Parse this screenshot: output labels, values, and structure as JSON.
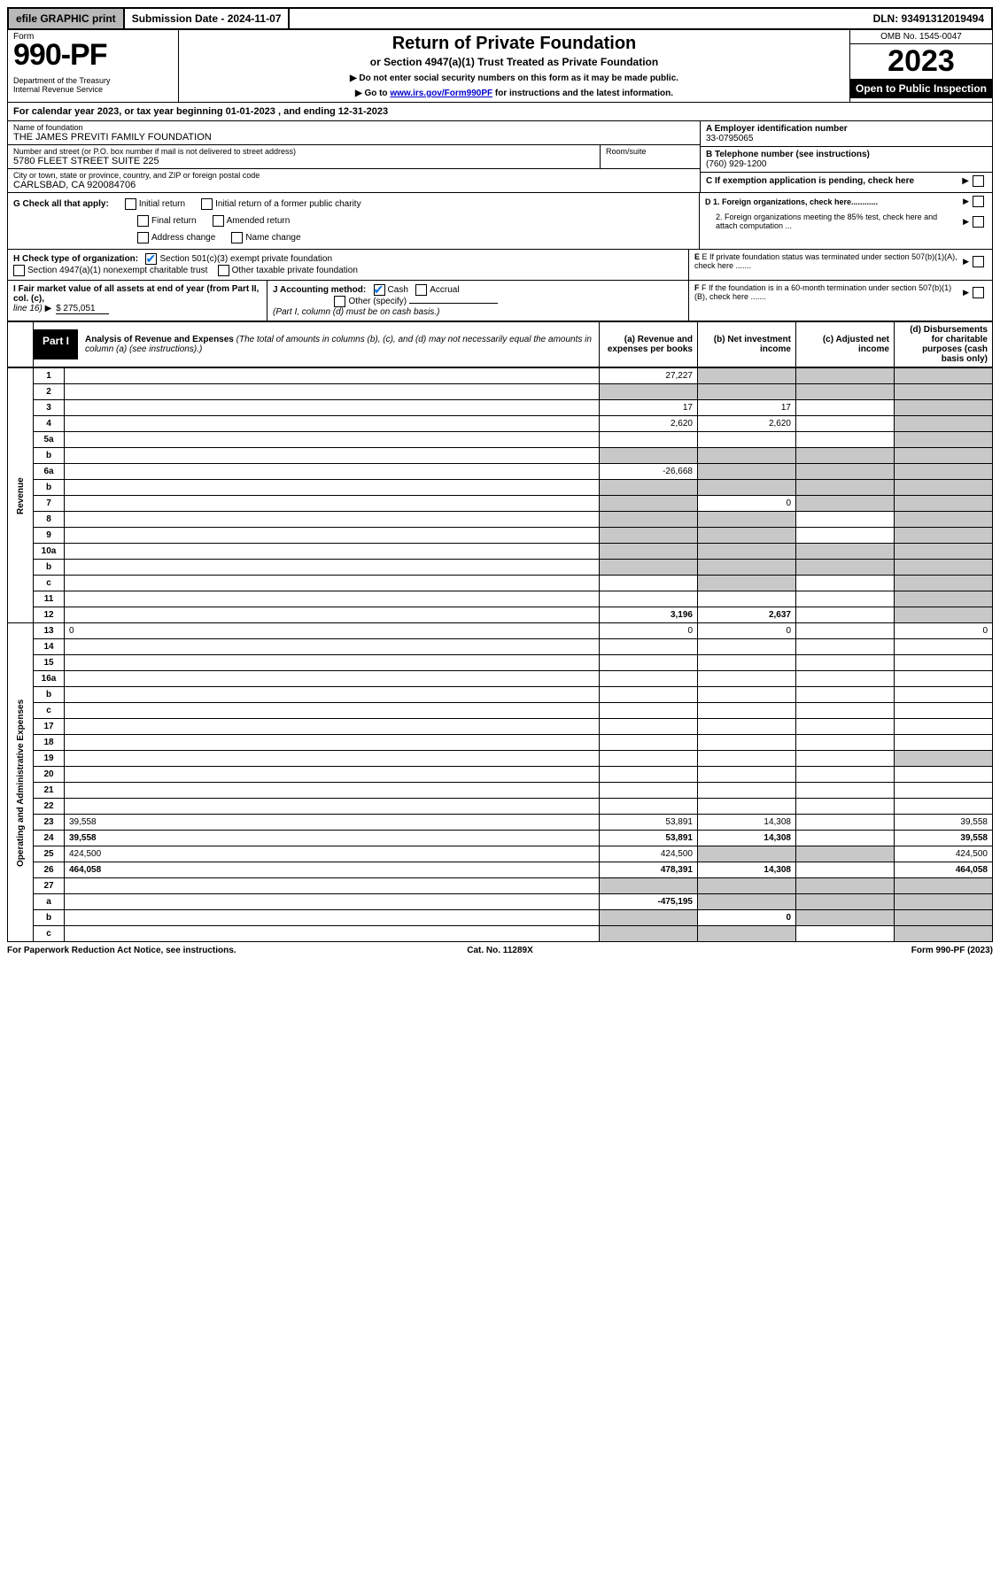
{
  "top": {
    "efile": "efile GRAPHIC print",
    "subdate_label": "Submission Date - 2024-11-07",
    "dln": "DLN: 93491312019494"
  },
  "header": {
    "form_label": "Form",
    "form_number": "990-PF",
    "dept": "Department of the Treasury\nInternal Revenue Service",
    "title": "Return of Private Foundation",
    "subtitle": "or Section 4947(a)(1) Trust Treated as Private Foundation",
    "note1": "▶ Do not enter social security numbers on this form as it may be made public.",
    "note2_prefix": "▶ Go to ",
    "note2_link": "www.irs.gov/Form990PF",
    "note2_suffix": " for instructions and the latest information.",
    "omb": "OMB No. 1545-0047",
    "year": "2023",
    "open": "Open to Public Inspection"
  },
  "calyear": "For calendar year 2023, or tax year beginning 01-01-2023             , and ending 12-31-2023",
  "info": {
    "name_label": "Name of foundation",
    "name": "THE JAMES PREVITI FAMILY FOUNDATION",
    "addr_label": "Number and street (or P.O. box number if mail is not delivered to street address)",
    "addr": "5780 FLEET STREET SUITE 225",
    "room_label": "Room/suite",
    "city_label": "City or town, state or province, country, and ZIP or foreign postal code",
    "city": "CARLSBAD, CA  920084706",
    "A_label": "A Employer identification number",
    "A_val": "33-0795065",
    "B_label": "B Telephone number (see instructions)",
    "B_val": "(760) 929-1200",
    "C_label": "C If exemption application is pending, check here",
    "D1_label": "D 1. Foreign organizations, check here............",
    "D2_label": "2. Foreign organizations meeting the 85% test, check here and attach computation ...",
    "E_label": "E  If private foundation status was terminated under section 507(b)(1)(A), check here .......",
    "F_label": "F  If the foundation is in a 60-month termination under section 507(b)(1)(B), check here ......."
  },
  "G": {
    "label": "G Check all that apply:",
    "opts": [
      "Initial return",
      "Initial return of a former public charity",
      "Final return",
      "Amended return",
      "Address change",
      "Name change"
    ]
  },
  "H": {
    "label": "H Check type of organization:",
    "opt1": "Section 501(c)(3) exempt private foundation",
    "opt2": "Section 4947(a)(1) nonexempt charitable trust",
    "opt3": "Other taxable private foundation"
  },
  "I": {
    "label": "I Fair market value of all assets at end of year (from Part II, col. (c),",
    "line": "line 16)",
    "val": "$  275,051"
  },
  "J": {
    "label": "J Accounting method:",
    "cash": "Cash",
    "accrual": "Accrual",
    "other": "Other (specify)",
    "note": "(Part I, column (d) must be on cash basis.)"
  },
  "part1": {
    "label": "Part I",
    "title": "Analysis of Revenue and Expenses",
    "title_note": "(The total of amounts in columns (b), (c), and (d) may not necessarily equal the amounts in column (a) (see instructions).)",
    "col_a": "(a)  Revenue and expenses per books",
    "col_b": "(b)  Net investment income",
    "col_c": "(c)  Adjusted net income",
    "col_d": "(d)  Disbursements for charitable purposes (cash basis only)"
  },
  "sections": {
    "revenue": "Revenue",
    "opadmin": "Operating and Administrative Expenses"
  },
  "rows": [
    {
      "n": "1",
      "d": "",
      "a": "27,227",
      "b": "",
      "c": "",
      "shade": [
        "b",
        "c",
        "d"
      ]
    },
    {
      "n": "2",
      "d": "",
      "a": "",
      "b": "",
      "c": "",
      "shade": [
        "a",
        "b",
        "c",
        "d"
      ]
    },
    {
      "n": "3",
      "d": "",
      "a": "17",
      "b": "17",
      "c": "",
      "shade": [
        "d"
      ]
    },
    {
      "n": "4",
      "d": "",
      "a": "2,620",
      "b": "2,620",
      "c": "",
      "shade": [
        "d"
      ]
    },
    {
      "n": "5a",
      "d": "",
      "a": "",
      "b": "",
      "c": "",
      "shade": [
        "d"
      ]
    },
    {
      "n": "b",
      "d": "",
      "a": "",
      "b": "",
      "c": "",
      "shade": [
        "a",
        "b",
        "c",
        "d"
      ]
    },
    {
      "n": "6a",
      "d": "",
      "a": "-26,668",
      "b": "",
      "c": "",
      "shade": [
        "b",
        "c",
        "d"
      ]
    },
    {
      "n": "b",
      "d": "",
      "a": "",
      "b": "",
      "c": "",
      "shade": [
        "a",
        "b",
        "c",
        "d"
      ]
    },
    {
      "n": "7",
      "d": "",
      "a": "",
      "b": "0",
      "c": "",
      "shade": [
        "a",
        "c",
        "d"
      ]
    },
    {
      "n": "8",
      "d": "",
      "a": "",
      "b": "",
      "c": "",
      "shade": [
        "a",
        "b",
        "d"
      ]
    },
    {
      "n": "9",
      "d": "",
      "a": "",
      "b": "",
      "c": "",
      "shade": [
        "a",
        "b",
        "d"
      ]
    },
    {
      "n": "10a",
      "d": "",
      "a": "",
      "b": "",
      "c": "",
      "shade": [
        "a",
        "b",
        "c",
        "d"
      ]
    },
    {
      "n": "b",
      "d": "",
      "a": "",
      "b": "",
      "c": "",
      "shade": [
        "a",
        "b",
        "c",
        "d"
      ]
    },
    {
      "n": "c",
      "d": "",
      "a": "",
      "b": "",
      "c": "",
      "shade": [
        "b",
        "d"
      ]
    },
    {
      "n": "11",
      "d": "",
      "a": "",
      "b": "",
      "c": "",
      "shade": [
        "d"
      ]
    },
    {
      "n": "12",
      "d": "",
      "a": "3,196",
      "b": "2,637",
      "c": "",
      "bold": true,
      "shade": [
        "d"
      ]
    },
    {
      "n": "13",
      "d": "0",
      "a": "0",
      "b": "0",
      "c": ""
    },
    {
      "n": "14",
      "d": "",
      "a": "",
      "b": "",
      "c": ""
    },
    {
      "n": "15",
      "d": "",
      "a": "",
      "b": "",
      "c": ""
    },
    {
      "n": "16a",
      "d": "",
      "a": "",
      "b": "",
      "c": ""
    },
    {
      "n": "b",
      "d": "",
      "a": "",
      "b": "",
      "c": ""
    },
    {
      "n": "c",
      "d": "",
      "a": "",
      "b": "",
      "c": ""
    },
    {
      "n": "17",
      "d": "",
      "a": "",
      "b": "",
      "c": ""
    },
    {
      "n": "18",
      "d": "",
      "a": "",
      "b": "",
      "c": ""
    },
    {
      "n": "19",
      "d": "",
      "a": "",
      "b": "",
      "c": "",
      "shade": [
        "d"
      ]
    },
    {
      "n": "20",
      "d": "",
      "a": "",
      "b": "",
      "c": ""
    },
    {
      "n": "21",
      "d": "",
      "a": "",
      "b": "",
      "c": ""
    },
    {
      "n": "22",
      "d": "",
      "a": "",
      "b": "",
      "c": ""
    },
    {
      "n": "23",
      "d": "39,558",
      "a": "53,891",
      "b": "14,308",
      "c": ""
    },
    {
      "n": "24",
      "d": "39,558",
      "a": "53,891",
      "b": "14,308",
      "c": "",
      "bold": true
    },
    {
      "n": "25",
      "d": "424,500",
      "a": "424,500",
      "b": "",
      "c": "",
      "shade": [
        "b",
        "c"
      ]
    },
    {
      "n": "26",
      "d": "464,058",
      "a": "478,391",
      "b": "14,308",
      "c": "",
      "bold": true
    },
    {
      "n": "27",
      "d": "",
      "a": "",
      "b": "",
      "c": "",
      "shade": [
        "a",
        "b",
        "c",
        "d"
      ]
    },
    {
      "n": "a",
      "d": "",
      "a": "-475,195",
      "b": "",
      "c": "",
      "bold": true,
      "shade": [
        "b",
        "c",
        "d"
      ]
    },
    {
      "n": "b",
      "d": "",
      "a": "",
      "b": "0",
      "c": "",
      "bold": true,
      "shade": [
        "a",
        "c",
        "d"
      ]
    },
    {
      "n": "c",
      "d": "",
      "a": "",
      "b": "",
      "c": "",
      "bold": true,
      "shade": [
        "a",
        "b",
        "d"
      ]
    }
  ],
  "footer": {
    "left": "For Paperwork Reduction Act Notice, see instructions.",
    "center": "Cat. No. 11289X",
    "right": "Form 990-PF (2023)"
  }
}
